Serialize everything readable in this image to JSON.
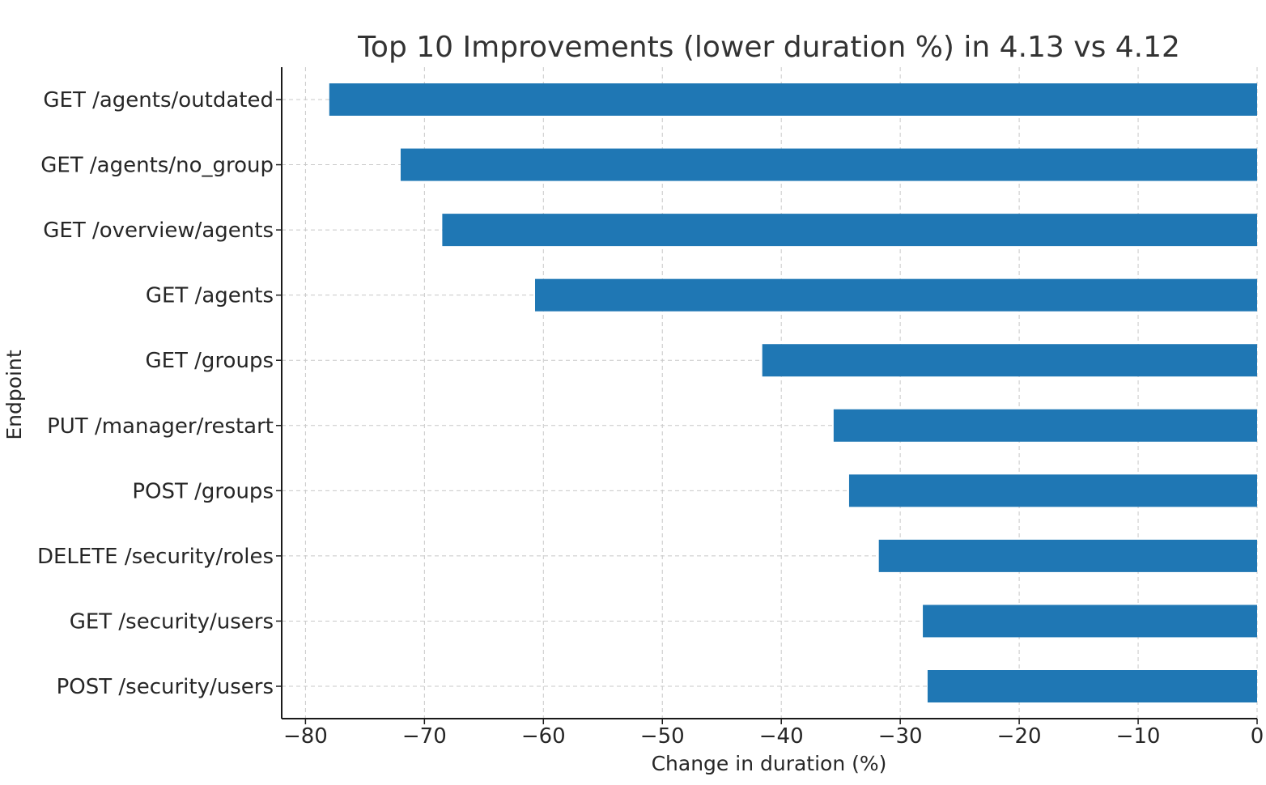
{
  "chart_data": {
    "type": "bar",
    "orientation": "horizontal",
    "title": "Top 10 Improvements (lower duration %) in 4.13 vs 4.12",
    "xlabel": "Change in duration (%)",
    "ylabel": "Endpoint",
    "xlim": [
      -82,
      0
    ],
    "xticks": [
      -80,
      -70,
      -60,
      -50,
      -40,
      -30,
      -20,
      -10,
      0
    ],
    "xtick_labels": [
      "−80",
      "−70",
      "−60",
      "−50",
      "−40",
      "−30",
      "−20",
      "−10",
      "0"
    ],
    "categories": [
      "GET /agents/outdated",
      "GET /agents/no_group",
      "GET /overview/agents",
      "GET /agents",
      "GET /groups",
      "PUT /manager/restart",
      "POST /groups",
      "DELETE /security/roles",
      "GET /security/users",
      "POST /security/users"
    ],
    "values": [
      -78.0,
      -72.0,
      -68.5,
      -60.7,
      -41.6,
      -35.6,
      -34.3,
      -31.8,
      -28.1,
      -27.7
    ],
    "bar_color": "#1f77b4",
    "grid": true
  }
}
